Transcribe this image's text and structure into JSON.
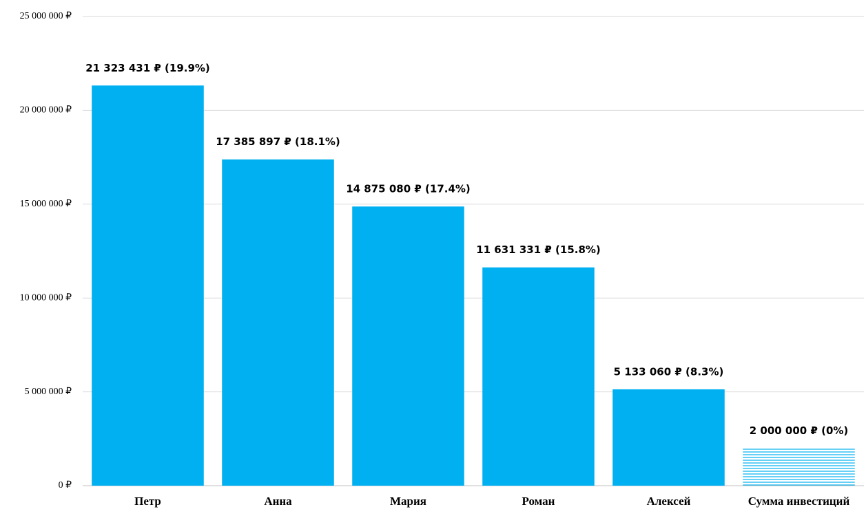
{
  "chart_data": {
    "type": "bar",
    "categories": [
      "Петр",
      "Анна",
      "Мария",
      "Роман",
      "Алексей",
      "Сумма инвестиций"
    ],
    "values": [
      21323431,
      17385897,
      14875080,
      11631331,
      5133060,
      2000000
    ],
    "value_labels": [
      "21 323 431 ₽ (19.9%)",
      "17 385 897 ₽ (18.1%)",
      "14 875 080 ₽ (17.4%)",
      "11 631 331 ₽ (15.8%)",
      "5 133 060 ₽ (8.3%)",
      "2 000 000 ₽ (0%)"
    ],
    "color": "#00b0f0",
    "hatched": [
      false,
      false,
      false,
      false,
      false,
      true
    ],
    "ylim": [
      0,
      25000000
    ],
    "yticks": [
      {
        "value": 0,
        "label": "0 ₽"
      },
      {
        "value": 5000000,
        "label": "5 000 000 ₽"
      },
      {
        "value": 10000000,
        "label": "10 000 000 ₽"
      },
      {
        "value": 15000000,
        "label": "15 000 000 ₽"
      },
      {
        "value": 20000000,
        "label": "20 000 000 ₽"
      },
      {
        "value": 25000000,
        "label": "25 000 000 ₽"
      }
    ],
    "grid": true
  }
}
